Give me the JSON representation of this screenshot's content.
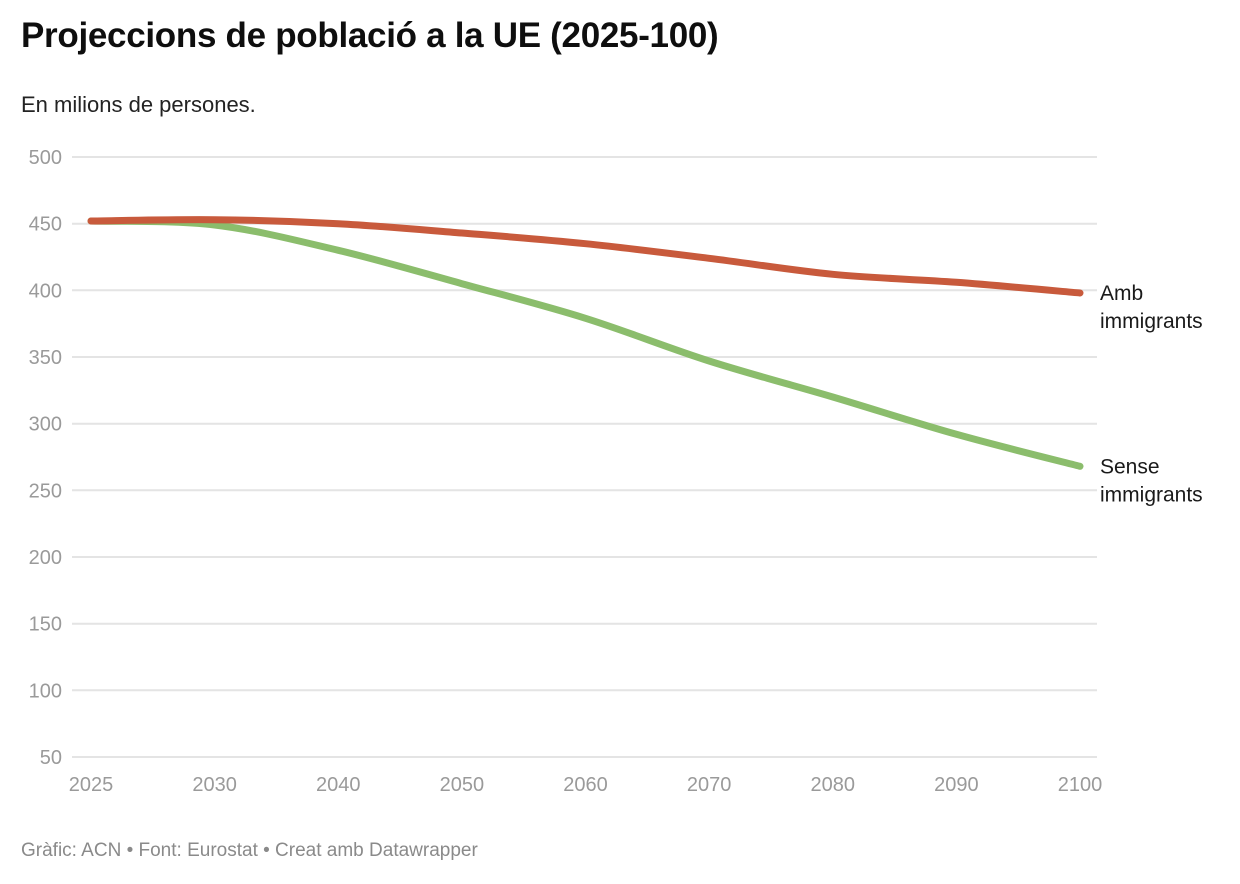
{
  "header": {
    "title": "Projeccions de població a la UE (2025-100)",
    "subtitle": "En milions de persones."
  },
  "footer": {
    "text": "Gràfic: ACN • Font: Eurostat • Creat amb Datawrapper"
  },
  "colors": {
    "amb_immigrants_line": "#c85a3c",
    "sense_immigrants_line": "#8bbd6c",
    "gridline": "#e4e4e4",
    "tick_label": "#9a9a9a",
    "series_label": "#1a1a1a"
  },
  "chart_data": {
    "type": "line",
    "title": "Projeccions de població a la UE (2025-100)",
    "subtitle": "En milions de persones.",
    "xlabel": "",
    "ylabel": "",
    "x": [
      2025,
      2030,
      2040,
      2050,
      2060,
      2070,
      2080,
      2090,
      2100
    ],
    "x_tick_labels": [
      "2025",
      "2030",
      "2040",
      "2050",
      "2060",
      "2070",
      "2080",
      "2090",
      "2100"
    ],
    "x_tick_spacing": "even",
    "y_ticks": [
      50,
      100,
      150,
      200,
      250,
      300,
      350,
      400,
      450,
      500
    ],
    "ylim": [
      50,
      500
    ],
    "grid": true,
    "legend_position": "right-of-line-end",
    "series": [
      {
        "name": "Amb immigrants",
        "label_lines": [
          "Amb",
          "immigrants"
        ],
        "color": "#c85a3c",
        "values": [
          452,
          453,
          450,
          443,
          435,
          424,
          412,
          406,
          398
        ]
      },
      {
        "name": "Sense immigrants",
        "label_lines": [
          "Sense",
          "immigrants"
        ],
        "color": "#8bbd6c",
        "values": [
          452,
          449,
          430,
          405,
          379,
          347,
          320,
          292,
          268
        ]
      }
    ]
  }
}
